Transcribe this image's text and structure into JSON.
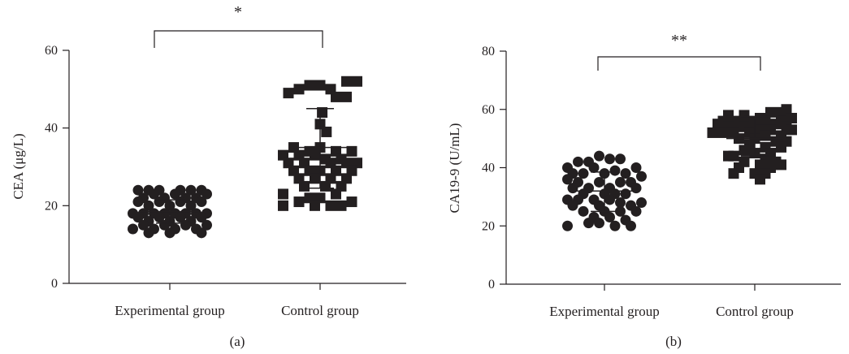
{
  "chart_data": [
    {
      "panel": "(a)",
      "type": "scatter",
      "ylabel": "CEA (μg/L)",
      "ylim": [
        0,
        60
      ],
      "yticks": [
        "0",
        "20",
        "40",
        "60"
      ],
      "categories": [
        "Experimental group",
        "Control group"
      ],
      "significance": "*",
      "series": [
        {
          "marker": "circle",
          "mean": 18.5,
          "sd_low": 15.5,
          "sd_high": 21.5,
          "points": [
            {
              "x": -3,
              "y": 24
            },
            {
              "x": -2,
              "y": 24
            },
            {
              "x": -1,
              "y": 24
            },
            {
              "x": 1,
              "y": 24
            },
            {
              "x": 2,
              "y": 24
            },
            {
              "x": 3,
              "y": 24
            },
            {
              "x": -1.5,
              "y": 23
            },
            {
              "x": 0.5,
              "y": 23
            },
            {
              "x": 3.5,
              "y": 23
            },
            {
              "x": -2.5,
              "y": 22
            },
            {
              "x": -0.5,
              "y": 22
            },
            {
              "x": 1.5,
              "y": 22
            },
            {
              "x": 2.5,
              "y": 22
            },
            {
              "x": -3,
              "y": 21
            },
            {
              "x": -1,
              "y": 21
            },
            {
              "x": 1,
              "y": 21
            },
            {
              "x": 3,
              "y": 21
            },
            {
              "x": -2,
              "y": 20
            },
            {
              "x": 0,
              "y": 20
            },
            {
              "x": 2,
              "y": 20
            },
            {
              "x": -3.5,
              "y": 18
            },
            {
              "x": -2.5,
              "y": 18
            },
            {
              "x": -1.5,
              "y": 18
            },
            {
              "x": -0.5,
              "y": 18
            },
            {
              "x": 0.5,
              "y": 18
            },
            {
              "x": 1.5,
              "y": 18
            },
            {
              "x": 2.5,
              "y": 18
            },
            {
              "x": 3.5,
              "y": 18
            },
            {
              "x": -3,
              "y": 17
            },
            {
              "x": -1,
              "y": 17
            },
            {
              "x": 1,
              "y": 17
            },
            {
              "x": 3,
              "y": 17
            },
            {
              "x": -2,
              "y": 16
            },
            {
              "x": 0,
              "y": 16
            },
            {
              "x": 2,
              "y": 16
            },
            {
              "x": -2.5,
              "y": 15
            },
            {
              "x": -0.5,
              "y": 15
            },
            {
              "x": 1.5,
              "y": 15
            },
            {
              "x": 3.5,
              "y": 15
            },
            {
              "x": -3.5,
              "y": 14
            },
            {
              "x": -1.5,
              "y": 14
            },
            {
              "x": 0.5,
              "y": 14
            },
            {
              "x": 2.5,
              "y": 14
            },
            {
              "x": -2,
              "y": 13
            },
            {
              "x": 0,
              "y": 13
            },
            {
              "x": 3,
              "y": 13
            }
          ]
        },
        {
          "marker": "square",
          "mean": 35,
          "sd_low": 24.5,
          "sd_high": 45,
          "points": [
            {
              "x": -1,
              "y": 51
            },
            {
              "x": 0,
              "y": 51
            },
            {
              "x": 2.5,
              "y": 52
            },
            {
              "x": 3.5,
              "y": 52
            },
            {
              "x": 1,
              "y": 50
            },
            {
              "x": -2,
              "y": 50
            },
            {
              "x": -3,
              "y": 49
            },
            {
              "x": 1.5,
              "y": 48
            },
            {
              "x": 2.5,
              "y": 48
            },
            {
              "x": 0.2,
              "y": 44
            },
            {
              "x": 0,
              "y": 41
            },
            {
              "x": 0.6,
              "y": 39
            },
            {
              "x": -2.5,
              "y": 35
            },
            {
              "x": -1,
              "y": 34
            },
            {
              "x": 0,
              "y": 35
            },
            {
              "x": 1.5,
              "y": 34
            },
            {
              "x": 3,
              "y": 34
            },
            {
              "x": -3.5,
              "y": 33
            },
            {
              "x": -2,
              "y": 33
            },
            {
              "x": -0.5,
              "y": 33
            },
            {
              "x": 0.5,
              "y": 32
            },
            {
              "x": 2,
              "y": 32
            },
            {
              "x": -3,
              "y": 31
            },
            {
              "x": -1.5,
              "y": 31
            },
            {
              "x": 1,
              "y": 31
            },
            {
              "x": 2.5,
              "y": 31
            },
            {
              "x": 3.5,
              "y": 31
            },
            {
              "x": -2.5,
              "y": 29
            },
            {
              "x": -1,
              "y": 29
            },
            {
              "x": 0,
              "y": 29
            },
            {
              "x": 1.5,
              "y": 29
            },
            {
              "x": 3,
              "y": 29
            },
            {
              "x": -2,
              "y": 27
            },
            {
              "x": -0.5,
              "y": 27
            },
            {
              "x": 1,
              "y": 27
            },
            {
              "x": 2.5,
              "y": 27
            },
            {
              "x": -1.5,
              "y": 25
            },
            {
              "x": 0.5,
              "y": 25
            },
            {
              "x": 2,
              "y": 25
            },
            {
              "x": -3.5,
              "y": 23
            },
            {
              "x": -1,
              "y": 22
            },
            {
              "x": 0,
              "y": 22
            },
            {
              "x": 1.5,
              "y": 23
            },
            {
              "x": -3.5,
              "y": 20
            },
            {
              "x": -2,
              "y": 21
            },
            {
              "x": -0.5,
              "y": 20
            },
            {
              "x": 1,
              "y": 20
            },
            {
              "x": 3,
              "y": 21
            },
            {
              "x": 2,
              "y": 20
            }
          ]
        }
      ]
    },
    {
      "panel": "(b)",
      "type": "scatter",
      "ylabel": "CA19-9 (U/mL)",
      "ylim": [
        0,
        80
      ],
      "yticks": [
        "0",
        "20",
        "40",
        "60",
        "80"
      ],
      "categories": [
        "Experimental group",
        "Control group"
      ],
      "significance": "**",
      "series": [
        {
          "marker": "circle",
          "mean": 32,
          "sd_low": 25,
          "sd_high": 38.5,
          "points": [
            {
              "x": -0.5,
              "y": 44
            },
            {
              "x": 0.5,
              "y": 43
            },
            {
              "x": 1.5,
              "y": 43
            },
            {
              "x": -1.5,
              "y": 42
            },
            {
              "x": -2.5,
              "y": 42
            },
            {
              "x": -3.5,
              "y": 40
            },
            {
              "x": 3,
              "y": 40
            },
            {
              "x": -1,
              "y": 40
            },
            {
              "x": 1,
              "y": 39
            },
            {
              "x": -3,
              "y": 38
            },
            {
              "x": -2,
              "y": 38
            },
            {
              "x": 0,
              "y": 38
            },
            {
              "x": 2,
              "y": 38
            },
            {
              "x": 3.5,
              "y": 37
            },
            {
              "x": -3.5,
              "y": 36
            },
            {
              "x": -2.5,
              "y": 35
            },
            {
              "x": -0.5,
              "y": 35
            },
            {
              "x": 1.5,
              "y": 35
            },
            {
              "x": 2.5,
              "y": 35
            },
            {
              "x": -3,
              "y": 33
            },
            {
              "x": -1.5,
              "y": 33
            },
            {
              "x": 0.5,
              "y": 33
            },
            {
              "x": 3,
              "y": 33
            },
            {
              "x": -2,
              "y": 31
            },
            {
              "x": 0,
              "y": 31
            },
            {
              "x": 1,
              "y": 31
            },
            {
              "x": 2,
              "y": 31
            },
            {
              "x": -3.5,
              "y": 29
            },
            {
              "x": -2.5,
              "y": 29
            },
            {
              "x": -1,
              "y": 29
            },
            {
              "x": 0.5,
              "y": 29
            },
            {
              "x": 1.5,
              "y": 28
            },
            {
              "x": 3.5,
              "y": 28
            },
            {
              "x": -3,
              "y": 27
            },
            {
              "x": -0.5,
              "y": 27
            },
            {
              "x": 2.5,
              "y": 27
            },
            {
              "x": -2,
              "y": 25
            },
            {
              "x": 0,
              "y": 25
            },
            {
              "x": 1.5,
              "y": 25
            },
            {
              "x": 3,
              "y": 25
            },
            {
              "x": -1,
              "y": 23
            },
            {
              "x": 0.5,
              "y": 23
            },
            {
              "x": 2,
              "y": 22
            },
            {
              "x": -3.5,
              "y": 20
            },
            {
              "x": -1.5,
              "y": 21
            },
            {
              "x": 1,
              "y": 20
            },
            {
              "x": 2.5,
              "y": 20
            },
            {
              "x": -0.5,
              "y": 21
            }
          ]
        },
        {
          "marker": "square",
          "mean": 50,
          "sd_low": 44,
          "sd_high": 57,
          "points": [
            {
              "x": 3,
              "y": 60
            },
            {
              "x": 1.5,
              "y": 59
            },
            {
              "x": 2.5,
              "y": 59
            },
            {
              "x": -2.5,
              "y": 58
            },
            {
              "x": -1,
              "y": 58
            },
            {
              "x": 0.5,
              "y": 57
            },
            {
              "x": 3.5,
              "y": 57
            },
            {
              "x": -3,
              "y": 56
            },
            {
              "x": -2,
              "y": 56
            },
            {
              "x": -0.5,
              "y": 56
            },
            {
              "x": 1,
              "y": 56
            },
            {
              "x": 2.5,
              "y": 56
            },
            {
              "x": -3.5,
              "y": 55
            },
            {
              "x": -1.5,
              "y": 55
            },
            {
              "x": 0,
              "y": 55
            },
            {
              "x": 2,
              "y": 55
            },
            {
              "x": 3,
              "y": 54
            },
            {
              "x": -2.5,
              "y": 54
            },
            {
              "x": -1,
              "y": 54
            },
            {
              "x": 0.5,
              "y": 53
            },
            {
              "x": 1.5,
              "y": 53
            },
            {
              "x": 3.5,
              "y": 53
            },
            {
              "x": -4,
              "y": 52
            },
            {
              "x": -3,
              "y": 52
            },
            {
              "x": -2,
              "y": 52
            },
            {
              "x": -0.5,
              "y": 52
            },
            {
              "x": 1,
              "y": 51
            },
            {
              "x": 2.5,
              "y": 51
            },
            {
              "x": -1.5,
              "y": 50
            },
            {
              "x": 0,
              "y": 50
            },
            {
              "x": 2,
              "y": 49
            },
            {
              "x": 3,
              "y": 49
            },
            {
              "x": -0.5,
              "y": 48
            },
            {
              "x": 1,
              "y": 47
            },
            {
              "x": 2.5,
              "y": 47
            },
            {
              "x": -1,
              "y": 46
            },
            {
              "x": 1.5,
              "y": 45
            },
            {
              "x": -2.5,
              "y": 44
            },
            {
              "x": -2,
              "y": 44
            },
            {
              "x": 0,
              "y": 45
            },
            {
              "x": 1,
              "y": 43
            },
            {
              "x": 2,
              "y": 42
            },
            {
              "x": -1,
              "y": 42
            },
            {
              "x": 0.5,
              "y": 41
            },
            {
              "x": 2.5,
              "y": 41
            },
            {
              "x": -1.5,
              "y": 40
            },
            {
              "x": 1.5,
              "y": 40
            },
            {
              "x": -2,
              "y": 38
            },
            {
              "x": 0,
              "y": 38
            },
            {
              "x": 1,
              "y": 38
            },
            {
              "x": 0.5,
              "y": 36
            }
          ]
        }
      ]
    }
  ]
}
